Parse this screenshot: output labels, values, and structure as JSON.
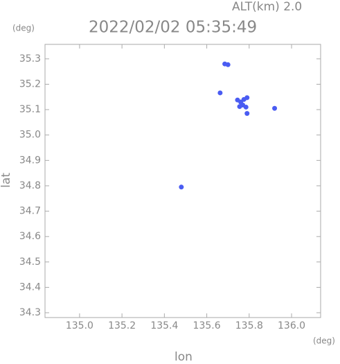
{
  "chart_data": {
    "type": "scatter",
    "title": "2022/02/02 05:35:49",
    "subtitle": "ALT(km) 2.0",
    "x_label": "lon",
    "y_label": "lat",
    "x_unit": "(deg)",
    "y_unit": "(deg)",
    "color": "#4a5cf2",
    "x": [
      135.685,
      135.7,
      135.663,
      135.745,
      135.76,
      135.775,
      135.79,
      135.77,
      135.785,
      135.79,
      135.755,
      135.92,
      135.48
    ],
    "y": [
      35.28,
      35.277,
      35.166,
      35.138,
      35.13,
      35.14,
      35.147,
      35.118,
      35.11,
      35.085,
      35.112,
      35.105,
      34.795
    ],
    "xlim": [
      134.837,
      136.137
    ],
    "ylim": [
      34.281,
      35.357
    ],
    "xticks": [
      {
        "value": 135.0,
        "label": "135.0"
      },
      135.2,
      135.4,
      135.6,
      135.8,
      {
        "value": 136.0,
        "label": "136.0"
      }
    ],
    "yticks": [
      34.3,
      34.4,
      34.5,
      34.6,
      34.7,
      34.8,
      34.9,
      {
        "value": 35.0,
        "label": "35.0"
      },
      35.1,
      35.2,
      35.3
    ]
  }
}
